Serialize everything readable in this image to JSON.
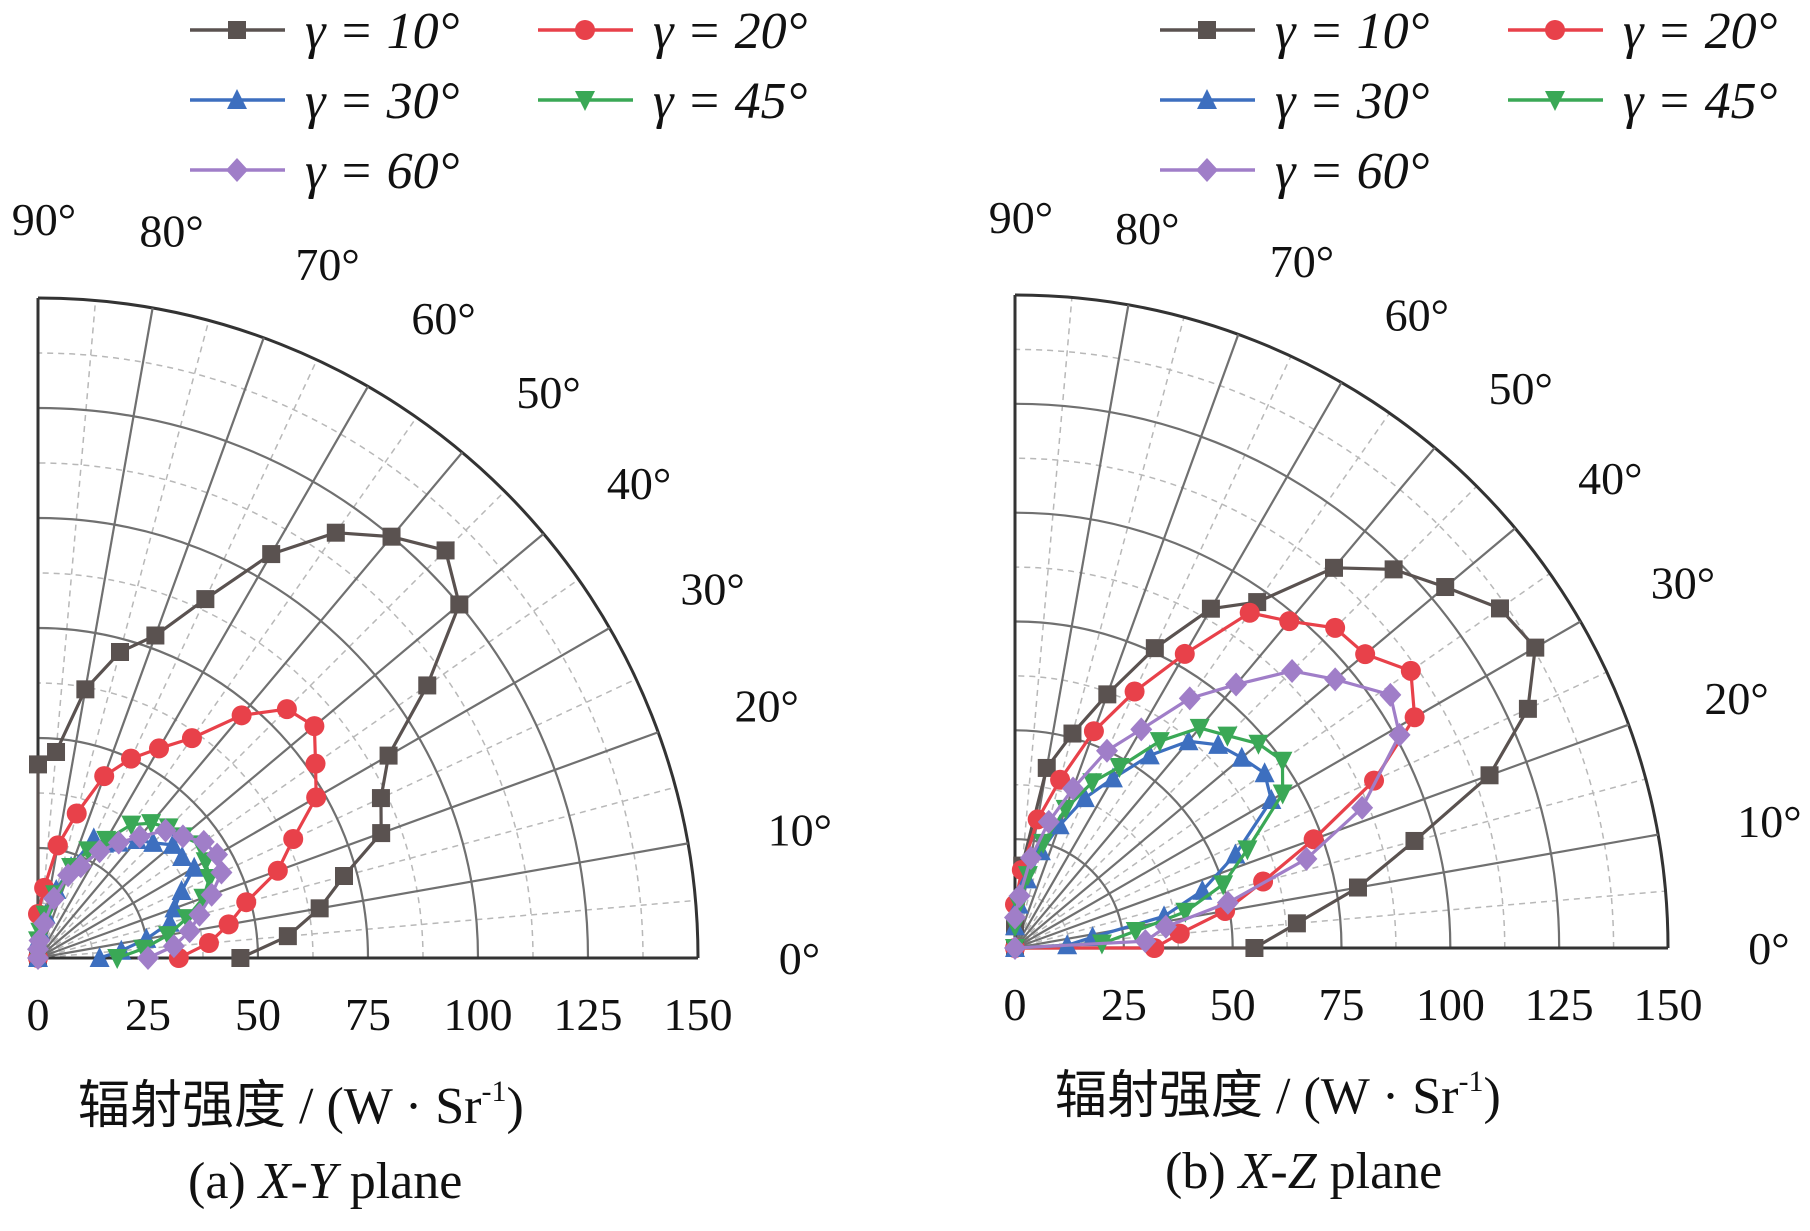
{
  "chart_data": [
    {
      "type": "polar-line",
      "caption": "(a) X-Y plane",
      "caption_prefix": "(a) ",
      "caption_axes": "X-Y",
      "caption_suffix": " plane",
      "radial_label_prefix": "辐射强度 / (W · Sr",
      "radial_label_sup": "-1",
      "radial_label_suffix": ")",
      "radial_range": [
        0,
        150
      ],
      "radial_ticks": [
        "0",
        "25",
        "50",
        "75",
        "100",
        "125",
        "150"
      ],
      "angular_range_deg": [
        0,
        90
      ],
      "angular_ticks": [
        "0°",
        "10°",
        "20°",
        "30°",
        "40°",
        "50°",
        "60°",
        "70°",
        "80°",
        "90°"
      ],
      "grid": true,
      "legend_position": "top",
      "series": [
        {
          "name": "γ = 10°",
          "color": "#5a5250",
          "marker": "square",
          "points": [
            [
              0,
              46
            ],
            [
              5,
              57
            ],
            [
              10,
              65
            ],
            [
              15,
              72
            ],
            [
              20,
              83
            ],
            [
              25,
              86
            ],
            [
              30,
              92
            ],
            [
              35,
              108
            ],
            [
              40,
              125
            ],
            [
              45,
              131
            ],
            [
              50,
              125
            ],
            [
              55,
              118
            ],
            [
              60,
              106
            ],
            [
              65,
              90
            ],
            [
              70,
              78
            ],
            [
              75,
              72
            ],
            [
              80,
              62
            ],
            [
              85,
              47
            ],
            [
              90,
              44
            ],
            [
              90,
              0
            ]
          ]
        },
        {
          "name": "γ = 20°",
          "color": "#e8414a",
          "marker": "circle",
          "points": [
            [
              0,
              32
            ],
            [
              5,
              39
            ],
            [
              10,
              44
            ],
            [
              15,
              49
            ],
            [
              20,
              58
            ],
            [
              25,
              64
            ],
            [
              30,
              73
            ],
            [
              35,
              77
            ],
            [
              40,
              82
            ],
            [
              45,
              80
            ],
            [
              50,
              72
            ],
            [
              55,
              61
            ],
            [
              60,
              55
            ],
            [
              65,
              50
            ],
            [
              70,
              44
            ],
            [
              75,
              34
            ],
            [
              80,
              26
            ],
            [
              85,
              16
            ],
            [
              90,
              10
            ],
            [
              90,
              0
            ]
          ]
        },
        {
          "name": "γ = 30°",
          "color": "#3d6fbf",
          "marker": "triangle-up",
          "points": [
            [
              0,
              14
            ],
            [
              5,
              19
            ],
            [
              10,
              25
            ],
            [
              15,
              31
            ],
            [
              20,
              33
            ],
            [
              25,
              36
            ],
            [
              30,
              41
            ],
            [
              35,
              40
            ],
            [
              40,
              40
            ],
            [
              45,
              37
            ],
            [
              50,
              35
            ],
            [
              55,
              32
            ],
            [
              60,
              30
            ],
            [
              65,
              30
            ],
            [
              70,
              22
            ],
            [
              75,
              16
            ],
            [
              80,
              10
            ],
            [
              85,
              6
            ],
            [
              90,
              4
            ],
            [
              90,
              0
            ]
          ]
        },
        {
          "name": "γ = 45°",
          "color": "#3aa856",
          "marker": "triangle-down",
          "points": [
            [
              0,
              18
            ],
            [
              5,
              24
            ],
            [
              10,
              30
            ],
            [
              15,
              35
            ],
            [
              20,
              40
            ],
            [
              25,
              43
            ],
            [
              30,
              44
            ],
            [
              35,
              45
            ],
            [
              40,
              43
            ],
            [
              45,
              42
            ],
            [
              50,
              40
            ],
            [
              55,
              37
            ],
            [
              60,
              31
            ],
            [
              65,
              27
            ],
            [
              70,
              22
            ],
            [
              75,
              15
            ],
            [
              80,
              10
            ],
            [
              85,
              6
            ],
            [
              90,
              4
            ],
            [
              90,
              0
            ]
          ]
        },
        {
          "name": "γ = 60°",
          "color": "#a07ec8",
          "marker": "diamond",
          "points": [
            [
              0,
              25
            ],
            [
              5,
              31
            ],
            [
              10,
              35
            ],
            [
              15,
              38
            ],
            [
              20,
              42
            ],
            [
              25,
              46
            ],
            [
              30,
              47
            ],
            [
              35,
              46
            ],
            [
              40,
              43
            ],
            [
              45,
              41
            ],
            [
              50,
              36
            ],
            [
              55,
              32
            ],
            [
              60,
              28
            ],
            [
              65,
              23
            ],
            [
              70,
              20
            ],
            [
              75,
              14
            ],
            [
              80,
              8
            ],
            [
              85,
              4
            ],
            [
              90,
              2
            ],
            [
              90,
              0
            ]
          ]
        }
      ]
    },
    {
      "type": "polar-line",
      "caption": "(b) X-Z plane",
      "caption_prefix": "(b) ",
      "caption_axes": "X-Z",
      "caption_suffix": " plane",
      "radial_label_prefix": "辐射强度 / (W · Sr",
      "radial_label_sup": "-1",
      "radial_label_suffix": ")",
      "radial_range": [
        0,
        150
      ],
      "radial_ticks": [
        "0",
        "25",
        "50",
        "75",
        "100",
        "125",
        "150"
      ],
      "angular_range_deg": [
        0,
        90
      ],
      "angular_ticks": [
        "0°",
        "10°",
        "20°",
        "30°",
        "40°",
        "50°",
        "60°",
        "70°",
        "80°",
        "90°"
      ],
      "grid": true,
      "legend_position": "top",
      "series": [
        {
          "name": "γ = 10°",
          "color": "#5a5250",
          "marker": "square",
          "points": [
            [
              0,
              0
            ],
            [
              0,
              55
            ],
            [
              5,
              65
            ],
            [
              10,
              80
            ],
            [
              15,
              95
            ],
            [
              20,
              116
            ],
            [
              25,
              130
            ],
            [
              30,
              138
            ],
            [
              35,
              136
            ],
            [
              40,
              129
            ],
            [
              45,
              123
            ],
            [
              50,
              114
            ],
            [
              55,
              97
            ],
            [
              60,
              90
            ],
            [
              65,
              76
            ],
            [
              70,
              62
            ],
            [
              75,
              51
            ],
            [
              80,
              42
            ],
            [
              85,
              19
            ],
            [
              90,
              5
            ]
          ]
        },
        {
          "name": "γ = 20°",
          "color": "#e8414a",
          "marker": "circle",
          "points": [
            [
              0,
              0
            ],
            [
              0,
              32
            ],
            [
              5,
              38
            ],
            [
              10,
              49
            ],
            [
              15,
              59
            ],
            [
              20,
              73
            ],
            [
              25,
              91
            ],
            [
              30,
              106
            ],
            [
              35,
              111
            ],
            [
              40,
              105
            ],
            [
              45,
              104
            ],
            [
              50,
              98
            ],
            [
              55,
              94
            ],
            [
              60,
              78
            ],
            [
              65,
              65
            ],
            [
              70,
              53
            ],
            [
              75,
              40
            ],
            [
              80,
              30
            ],
            [
              85,
              18
            ],
            [
              90,
              10
            ]
          ]
        },
        {
          "name": "γ = 30°",
          "color": "#3d6fbf",
          "marker": "triangle-up",
          "points": [
            [
              0,
              0
            ],
            [
              3,
              12
            ],
            [
              8,
              18
            ],
            [
              12,
              35
            ],
            [
              17,
              45
            ],
            [
              23,
              55
            ],
            [
              30,
              68
            ],
            [
              35,
              70
            ],
            [
              40,
              68
            ],
            [
              45,
              66
            ],
            [
              50,
              62
            ],
            [
              55,
              54
            ],
            [
              60,
              45
            ],
            [
              65,
              38
            ],
            [
              70,
              30
            ],
            [
              75,
              23
            ],
            [
              80,
              16
            ],
            [
              85,
              10
            ],
            [
              90,
              5
            ]
          ]
        },
        {
          "name": "γ = 45°",
          "color": "#3aa856",
          "marker": "triangle-down",
          "points": [
            [
              0,
              0
            ],
            [
              3,
              20
            ],
            [
              8,
              28
            ],
            [
              12,
              40
            ],
            [
              17,
              50
            ],
            [
              23,
              58
            ],
            [
              30,
              71
            ],
            [
              35,
              75
            ],
            [
              40,
              73
            ],
            [
              45,
              69
            ],
            [
              50,
              66
            ],
            [
              55,
              58
            ],
            [
              60,
              48
            ],
            [
              65,
              42
            ],
            [
              70,
              34
            ],
            [
              75,
              25
            ],
            [
              80,
              17
            ],
            [
              85,
              10
            ],
            [
              90,
              5
            ]
          ]
        },
        {
          "name": "γ = 60°",
          "color": "#a07ec8",
          "marker": "diamond",
          "points": [
            [
              0,
              0
            ],
            [
              3,
              30
            ],
            [
              8,
              35
            ],
            [
              12,
              50
            ],
            [
              17,
              70
            ],
            [
              22,
              86
            ],
            [
              29,
              101
            ],
            [
              34,
              104
            ],
            [
              40,
              96
            ],
            [
              45,
              90
            ],
            [
              50,
              79
            ],
            [
              55,
              70
            ],
            [
              60,
              58
            ],
            [
              65,
              50
            ],
            [
              70,
              39
            ],
            [
              75,
              30
            ],
            [
              80,
              21
            ],
            [
              85,
              12
            ],
            [
              90,
              7
            ]
          ]
        }
      ]
    }
  ]
}
